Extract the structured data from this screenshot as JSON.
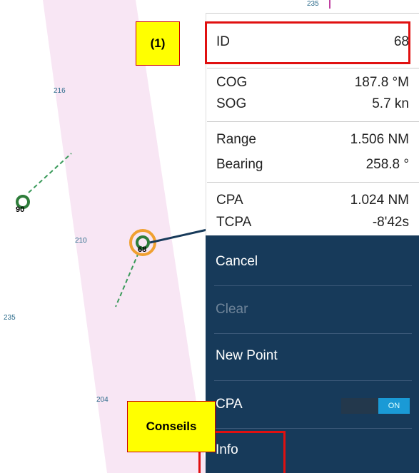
{
  "map": {
    "depths": [
      "235",
      "216",
      "210",
      "235",
      "204"
    ],
    "targets": [
      "90",
      "68"
    ]
  },
  "panel": {
    "rows": [
      {
        "label": "ID",
        "value": "68"
      },
      {
        "label": "COG",
        "value": "187.8 °M"
      },
      {
        "label": "SOG",
        "value": "5.7 kn"
      },
      {
        "label": "Range",
        "value": "1.506 NM"
      },
      {
        "label": "Bearing",
        "value": "258.8 °"
      },
      {
        "label": "CPA",
        "value": "1.024 NM"
      },
      {
        "label": "TCPA",
        "value": "-8'42s"
      }
    ],
    "menu": [
      "Cancel",
      "Clear",
      "New Point",
      "CPA",
      "Info"
    ],
    "toggle": "ON"
  },
  "annotations": [
    "(1)",
    "Conseils"
  ]
}
